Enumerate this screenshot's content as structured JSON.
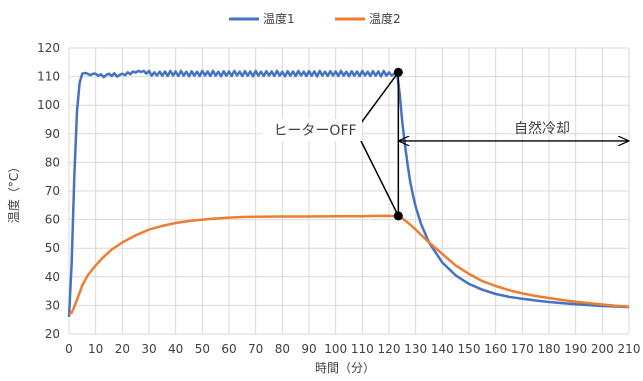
{
  "chart_data": {
    "type": "line",
    "xlabel": "時間（分）",
    "ylabel": "温度（°C）",
    "xlim": [
      0,
      210
    ],
    "ylim": [
      20,
      120
    ],
    "xticks": [
      "0",
      "10",
      "20",
      "30",
      "40",
      "50",
      "60",
      "70",
      "80",
      "90",
      "100",
      "110",
      "120",
      "130",
      "140",
      "150",
      "160",
      "170",
      "180",
      "190",
      "200",
      "210"
    ],
    "yticks": [
      "20",
      "30",
      "40",
      "50",
      "60",
      "70",
      "80",
      "90",
      "100",
      "110",
      "120"
    ],
    "grid": true,
    "legend_position": "top-center",
    "series": [
      {
        "name": "温度1",
        "color": "#4472C4",
        "points": [
          [
            0,
            26
          ],
          [
            1,
            45
          ],
          [
            2,
            75
          ],
          [
            3,
            98
          ],
          [
            4,
            108
          ],
          [
            5,
            111
          ],
          [
            6,
            111.3
          ],
          [
            7,
            111
          ],
          [
            8,
            110.5
          ],
          [
            9,
            111
          ],
          [
            10,
            111
          ],
          [
            11,
            110.3
          ],
          [
            12,
            110.8
          ],
          [
            13,
            109.8
          ],
          [
            14,
            110.6
          ],
          [
            15,
            111
          ],
          [
            16,
            110.2
          ],
          [
            17,
            111.2
          ],
          [
            18,
            110
          ],
          [
            19,
            110.6
          ],
          [
            20,
            111
          ],
          [
            21,
            110.5
          ],
          [
            22,
            111.5
          ],
          [
            23,
            110.8
          ],
          [
            24,
            111.8
          ],
          [
            25,
            111.4
          ],
          [
            26,
            112
          ],
          [
            27,
            111.6
          ],
          [
            28,
            112
          ],
          [
            29,
            111
          ],
          [
            30,
            112
          ],
          [
            31,
            110.3
          ],
          [
            32,
            111.5
          ],
          [
            33,
            110.4
          ],
          [
            34,
            111.7
          ],
          [
            35,
            110.3
          ],
          [
            36,
            111.8
          ],
          [
            37,
            110.2
          ],
          [
            38,
            112
          ],
          [
            39,
            110.4
          ],
          [
            40,
            111.8
          ],
          [
            41,
            110.2
          ],
          [
            42,
            112
          ],
          [
            43,
            110.3
          ],
          [
            44,
            111.7
          ],
          [
            45,
            110.1
          ],
          [
            46,
            111.9
          ],
          [
            47,
            110.3
          ],
          [
            48,
            111.7
          ],
          [
            49,
            110.2
          ],
          [
            50,
            112
          ],
          [
            51,
            110.4
          ],
          [
            52,
            111.8
          ],
          [
            53,
            110.2
          ],
          [
            54,
            112
          ],
          [
            55,
            110.3
          ],
          [
            56,
            111.7
          ],
          [
            57,
            110.1
          ],
          [
            58,
            111.9
          ],
          [
            59,
            110.3
          ],
          [
            60,
            111.8
          ],
          [
            61,
            110.2
          ],
          [
            62,
            112
          ],
          [
            63,
            110.4
          ],
          [
            64,
            111.7
          ],
          [
            65,
            110.2
          ],
          [
            66,
            111.9
          ],
          [
            67,
            110.3
          ],
          [
            68,
            111.8
          ],
          [
            69,
            110.1
          ],
          [
            70,
            112
          ],
          [
            71,
            110.3
          ],
          [
            72,
            111.7
          ],
          [
            73,
            110.2
          ],
          [
            74,
            111.9
          ],
          [
            75,
            110.4
          ],
          [
            76,
            111.8
          ],
          [
            77,
            110.2
          ],
          [
            78,
            112
          ],
          [
            79,
            110.3
          ],
          [
            80,
            111.7
          ],
          [
            81,
            110.1
          ],
          [
            82,
            111.9
          ],
          [
            83,
            110.3
          ],
          [
            84,
            111.8
          ],
          [
            85,
            110.2
          ],
          [
            86,
            112
          ],
          [
            87,
            110.4
          ],
          [
            88,
            111.7
          ],
          [
            89,
            110.2
          ],
          [
            90,
            111.9
          ],
          [
            91,
            110.3
          ],
          [
            92,
            111.8
          ],
          [
            93,
            110.1
          ],
          [
            94,
            112
          ],
          [
            95,
            110.3
          ],
          [
            96,
            111.7
          ],
          [
            97,
            110.2
          ],
          [
            98,
            111.9
          ],
          [
            99,
            110.4
          ],
          [
            100,
            111.8
          ],
          [
            101,
            110.2
          ],
          [
            102,
            112
          ],
          [
            103,
            110.3
          ],
          [
            104,
            111.7
          ],
          [
            105,
            110.1
          ],
          [
            106,
            111.9
          ],
          [
            107,
            110.3
          ],
          [
            108,
            111.8
          ],
          [
            109,
            110.2
          ],
          [
            110,
            112
          ],
          [
            111,
            110.4
          ],
          [
            112,
            111.7
          ],
          [
            113,
            110.2
          ],
          [
            114,
            111.9
          ],
          [
            115,
            110.3
          ],
          [
            116,
            111.8
          ],
          [
            117,
            110.1
          ],
          [
            118,
            112
          ],
          [
            119,
            110.3
          ],
          [
            120,
            111.5
          ],
          [
            121,
            110.4
          ],
          [
            122,
            111
          ],
          [
            123,
            111.5
          ],
          [
            124,
            104
          ],
          [
            125,
            94
          ],
          [
            126,
            86
          ],
          [
            127,
            79
          ],
          [
            128,
            73
          ],
          [
            129,
            68.5
          ],
          [
            130,
            64.5
          ],
          [
            132,
            58.5
          ],
          [
            135,
            52
          ],
          [
            140,
            45
          ],
          [
            145,
            40.5
          ],
          [
            150,
            37.5
          ],
          [
            155,
            35.5
          ],
          [
            160,
            34
          ],
          [
            165,
            33
          ],
          [
            170,
            32.3
          ],
          [
            175,
            31.7
          ],
          [
            180,
            31.2
          ],
          [
            185,
            30.8
          ],
          [
            190,
            30.4
          ],
          [
            195,
            30.1
          ],
          [
            200,
            29.8
          ],
          [
            205,
            29.6
          ],
          [
            210,
            29.4
          ]
        ]
      },
      {
        "name": "温度2",
        "color": "#ED7D31",
        "points": [
          [
            0,
            27
          ],
          [
            1,
            27.5
          ],
          [
            2,
            29.5
          ],
          [
            3,
            32
          ],
          [
            4,
            34.5
          ],
          [
            5,
            37
          ],
          [
            7,
            40.5
          ],
          [
            10,
            44
          ],
          [
            13,
            47
          ],
          [
            16,
            49.5
          ],
          [
            20,
            52
          ],
          [
            25,
            54.5
          ],
          [
            30,
            56.5
          ],
          [
            35,
            57.8
          ],
          [
            40,
            58.8
          ],
          [
            45,
            59.5
          ],
          [
            50,
            60
          ],
          [
            55,
            60.4
          ],
          [
            60,
            60.7
          ],
          [
            65,
            60.9
          ],
          [
            70,
            61
          ],
          [
            80,
            61.1
          ],
          [
            90,
            61.1
          ],
          [
            100,
            61.2
          ],
          [
            110,
            61.2
          ],
          [
            115,
            61.3
          ],
          [
            120,
            61.3
          ],
          [
            123,
            61.2
          ],
          [
            125,
            60.5
          ],
          [
            127,
            59
          ],
          [
            130,
            56.5
          ],
          [
            135,
            52
          ],
          [
            140,
            48
          ],
          [
            145,
            44
          ],
          [
            150,
            41
          ],
          [
            155,
            38.5
          ],
          [
            160,
            36.8
          ],
          [
            165,
            35.3
          ],
          [
            170,
            34.2
          ],
          [
            175,
            33.3
          ],
          [
            180,
            32.6
          ],
          [
            185,
            31.9
          ],
          [
            190,
            31.3
          ],
          [
            195,
            30.8
          ],
          [
            200,
            30.3
          ],
          [
            205,
            29.9
          ],
          [
            210,
            29.5
          ]
        ]
      }
    ],
    "annotations": {
      "heater_off_label": "ヒーターOFF",
      "natural_cooling_label": "自然冷却",
      "heater_off_x": 123.5,
      "heater_off_points": [
        [
          123.5,
          111.5
        ],
        [
          123.5,
          61.3
        ]
      ],
      "cooling_arrow_x": [
        123.5,
        210
      ],
      "cooling_arrow_y": 87.5
    }
  }
}
